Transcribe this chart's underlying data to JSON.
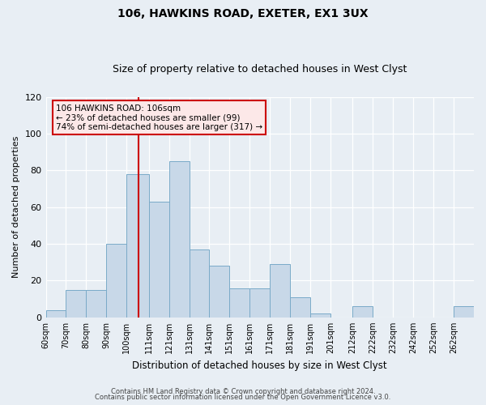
{
  "title": "106, HAWKINS ROAD, EXETER, EX1 3UX",
  "subtitle": "Size of property relative to detached houses in West Clyst",
  "xlabel": "Distribution of detached houses by size in West Clyst",
  "ylabel": "Number of detached properties",
  "bin_labels": [
    "60sqm",
    "70sqm",
    "80sqm",
    "90sqm",
    "100sqm",
    "111sqm",
    "121sqm",
    "131sqm",
    "141sqm",
    "151sqm",
    "161sqm",
    "171sqm",
    "181sqm",
    "191sqm",
    "201sqm",
    "212sqm",
    "222sqm",
    "232sqm",
    "242sqm",
    "252sqm",
    "262sqm"
  ],
  "bin_edges": [
    60,
    70,
    80,
    90,
    100,
    111,
    121,
    131,
    141,
    151,
    161,
    171,
    181,
    191,
    201,
    212,
    222,
    232,
    242,
    252,
    262,
    272
  ],
  "bar_heights": [
    4,
    15,
    15,
    40,
    78,
    63,
    85,
    37,
    28,
    16,
    16,
    29,
    11,
    2,
    0,
    6,
    0,
    0,
    0,
    0,
    6
  ],
  "bar_color": "#c8d8e8",
  "bar_edge_color": "#7aaac8",
  "vline_x": 106,
  "vline_color": "#cc0000",
  "annotation_line1": "106 HAWKINS ROAD: 106sqm",
  "annotation_line2": "← 23% of detached houses are smaller (99)",
  "annotation_line3": "74% of semi-detached houses are larger (317) →",
  "box_facecolor": "#fce8e8",
  "box_edgecolor": "#cc0000",
  "ylim": [
    0,
    120
  ],
  "yticks": [
    0,
    20,
    40,
    60,
    80,
    100,
    120
  ],
  "footnote1": "Contains HM Land Registry data © Crown copyright and database right 2024.",
  "footnote2": "Contains public sector information licensed under the Open Government Licence v3.0.",
  "background_color": "#e8eef4",
  "grid_color": "#ffffff",
  "title_fontsize": 10,
  "subtitle_fontsize": 9
}
